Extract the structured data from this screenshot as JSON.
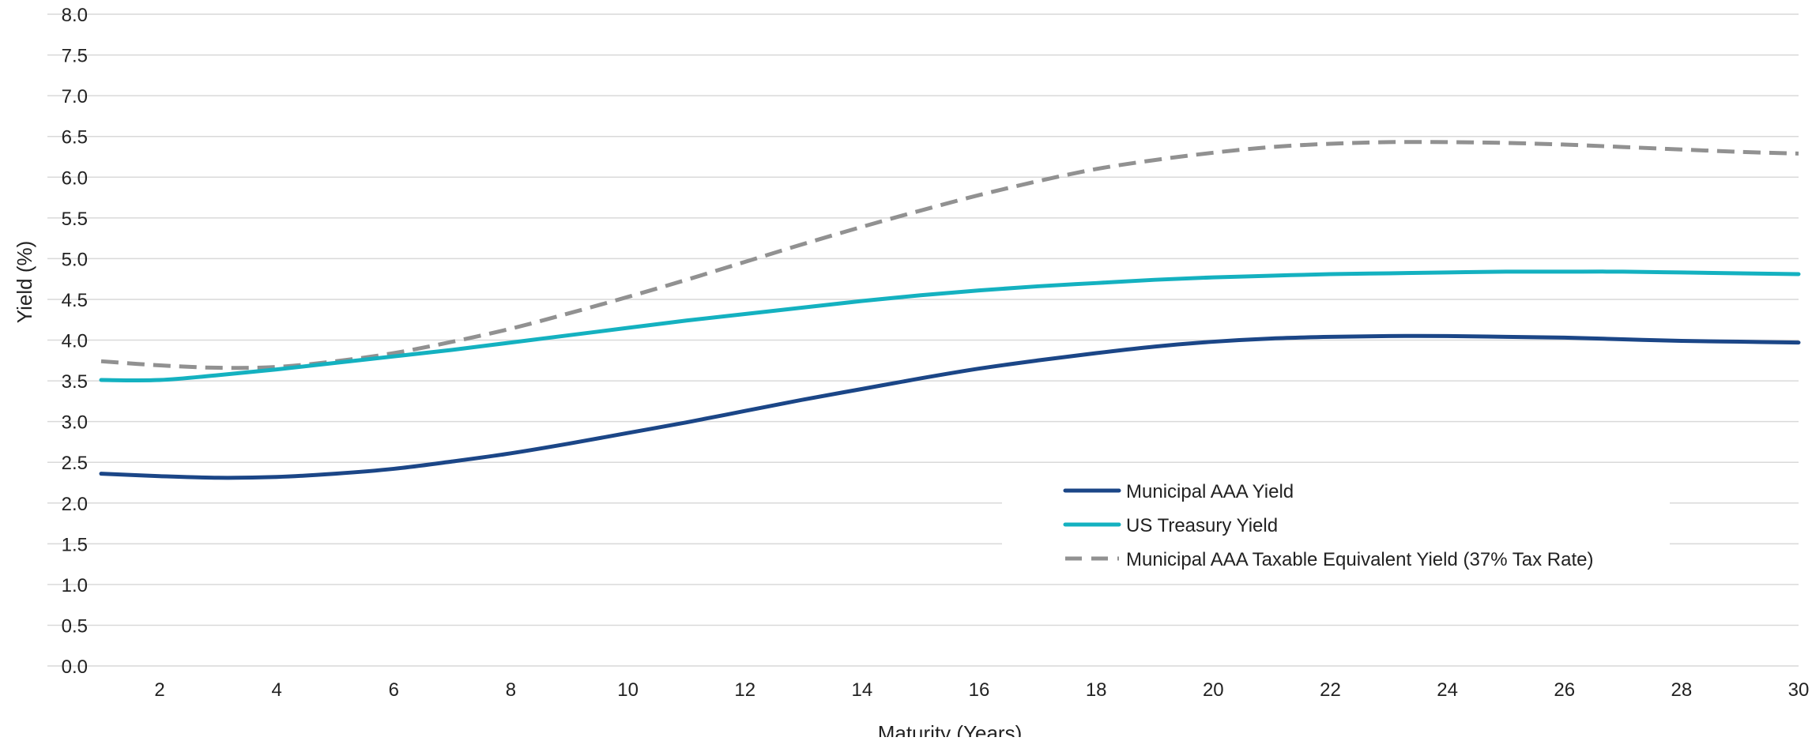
{
  "chart_data": {
    "type": "line",
    "title": "",
    "xlabel": "Maturity (Years)",
    "ylabel": "Yield (%)",
    "xlim": [
      1,
      30
    ],
    "ylim": [
      0,
      8
    ],
    "x_ticks": [
      2,
      4,
      6,
      8,
      10,
      12,
      14,
      16,
      18,
      20,
      22,
      24,
      26,
      28,
      30
    ],
    "y_ticks": [
      "0.0",
      "0.5",
      "1.0",
      "1.5",
      "2.0",
      "2.5",
      "3.0",
      "3.5",
      "4.0",
      "4.5",
      "5.0",
      "5.5",
      "6.0",
      "6.5",
      "7.0",
      "7.5",
      "8.0"
    ],
    "grid": "horizontal",
    "legend_position": "lower-center-right",
    "x": [
      1,
      2,
      3,
      4,
      5,
      6,
      7,
      8,
      9,
      10,
      11,
      12,
      13,
      14,
      15,
      16,
      17,
      18,
      19,
      20,
      21,
      22,
      23,
      24,
      25,
      26,
      27,
      28,
      29,
      30
    ],
    "series": [
      {
        "name": "Municipal AAA Yield",
        "color": "#1B4687",
        "style": "solid",
        "values": [
          2.36,
          2.33,
          2.31,
          2.32,
          2.36,
          2.42,
          2.51,
          2.61,
          2.73,
          2.86,
          2.99,
          3.13,
          3.27,
          3.4,
          3.53,
          3.65,
          3.75,
          3.84,
          3.92,
          3.98,
          4.02,
          4.04,
          4.05,
          4.05,
          4.04,
          4.03,
          4.01,
          3.99,
          3.98,
          3.97
        ]
      },
      {
        "name": "US Treasury Yield",
        "color": "#14B1C0",
        "style": "solid",
        "values": [
          3.51,
          3.51,
          3.57,
          3.64,
          3.72,
          3.8,
          3.88,
          3.97,
          4.06,
          4.15,
          4.24,
          4.32,
          4.4,
          4.48,
          4.55,
          4.61,
          4.66,
          4.7,
          4.74,
          4.77,
          4.79,
          4.81,
          4.82,
          4.83,
          4.84,
          4.84,
          4.84,
          4.83,
          4.82,
          4.81
        ]
      },
      {
        "name": "Municipal AAA Taxable Equivalent Yield (37% Tax Rate)",
        "color": "#919191",
        "style": "dashed",
        "values": [
          3.74,
          3.69,
          3.66,
          3.67,
          3.74,
          3.84,
          3.98,
          4.14,
          4.33,
          4.53,
          4.74,
          4.96,
          5.18,
          5.39,
          5.59,
          5.78,
          5.95,
          6.1,
          6.21,
          6.3,
          6.37,
          6.41,
          6.43,
          6.43,
          6.42,
          6.4,
          6.37,
          6.34,
          6.31,
          6.29
        ]
      }
    ]
  }
}
